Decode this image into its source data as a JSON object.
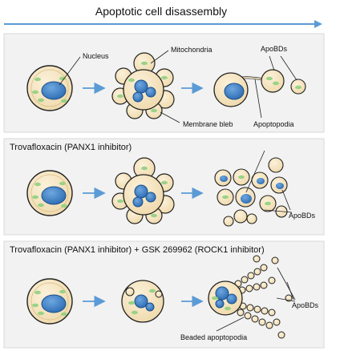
{
  "header": {
    "title": "Apoptotic cell disassembly"
  },
  "panels": [
    {
      "title": "",
      "labels": {
        "nucleus": "Nucleus",
        "mitochondria": "Mitochondria",
        "apobds": "ApoBDs",
        "membrane_bleb": "Membrane bleb",
        "apoptopodia": "Apoptopodia"
      }
    },
    {
      "title": "Trovafloxacin (PANX1 inhibitor)",
      "labels": {
        "apobds": "ApoBDs"
      }
    },
    {
      "title": "Trovafloxacin (PANX1 inhibitor) + GSK 269962 (ROCK1 inhibitor)",
      "labels": {
        "apobds": "ApoBDs",
        "beaded_apoptopodia": "Beaded apoptopodia"
      }
    }
  ],
  "colors": {
    "cytoplasm": "#f6e6c4",
    "nucleus": "#3f7fc4",
    "mitochondria": "#8fcf7e",
    "arrow": "#5b9bd5",
    "panel_bg": "#f2f2f2"
  }
}
